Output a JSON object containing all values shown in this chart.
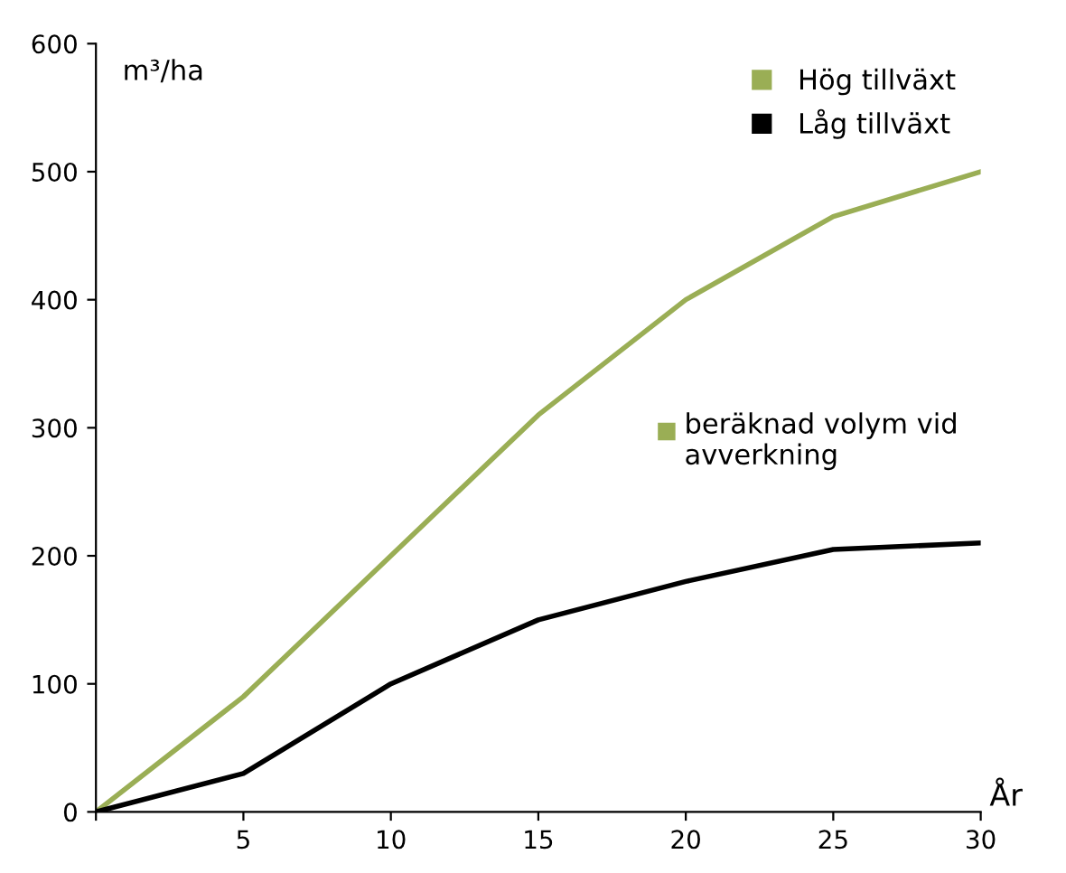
{
  "chart_data": {
    "type": "line",
    "xlabel": "År",
    "ylabel": "m³/ha",
    "x": [
      0,
      5,
      10,
      15,
      20,
      25,
      30
    ],
    "series": [
      {
        "name": "Hög tillväxt",
        "color": "#9aae55",
        "values": [
          0,
          90,
          200,
          310,
          400,
          465,
          500
        ]
      },
      {
        "name": "Låg tillväxt",
        "color": "#000000",
        "values": [
          0,
          30,
          100,
          150,
          180,
          205,
          210
        ]
      }
    ],
    "xlim": [
      0,
      30
    ],
    "xticks": [
      {
        "value": 0,
        "label": null
      },
      5,
      10,
      15,
      20,
      25,
      30
    ],
    "ylim": [
      0,
      600
    ],
    "yticks": [
      0,
      100,
      200,
      300,
      400,
      500,
      600
    ],
    "annotations": [
      "beräknad volym vid avverkning"
    ],
    "grid": false,
    "legend": "top right",
    "marker": "none",
    "line_style": "solid"
  }
}
